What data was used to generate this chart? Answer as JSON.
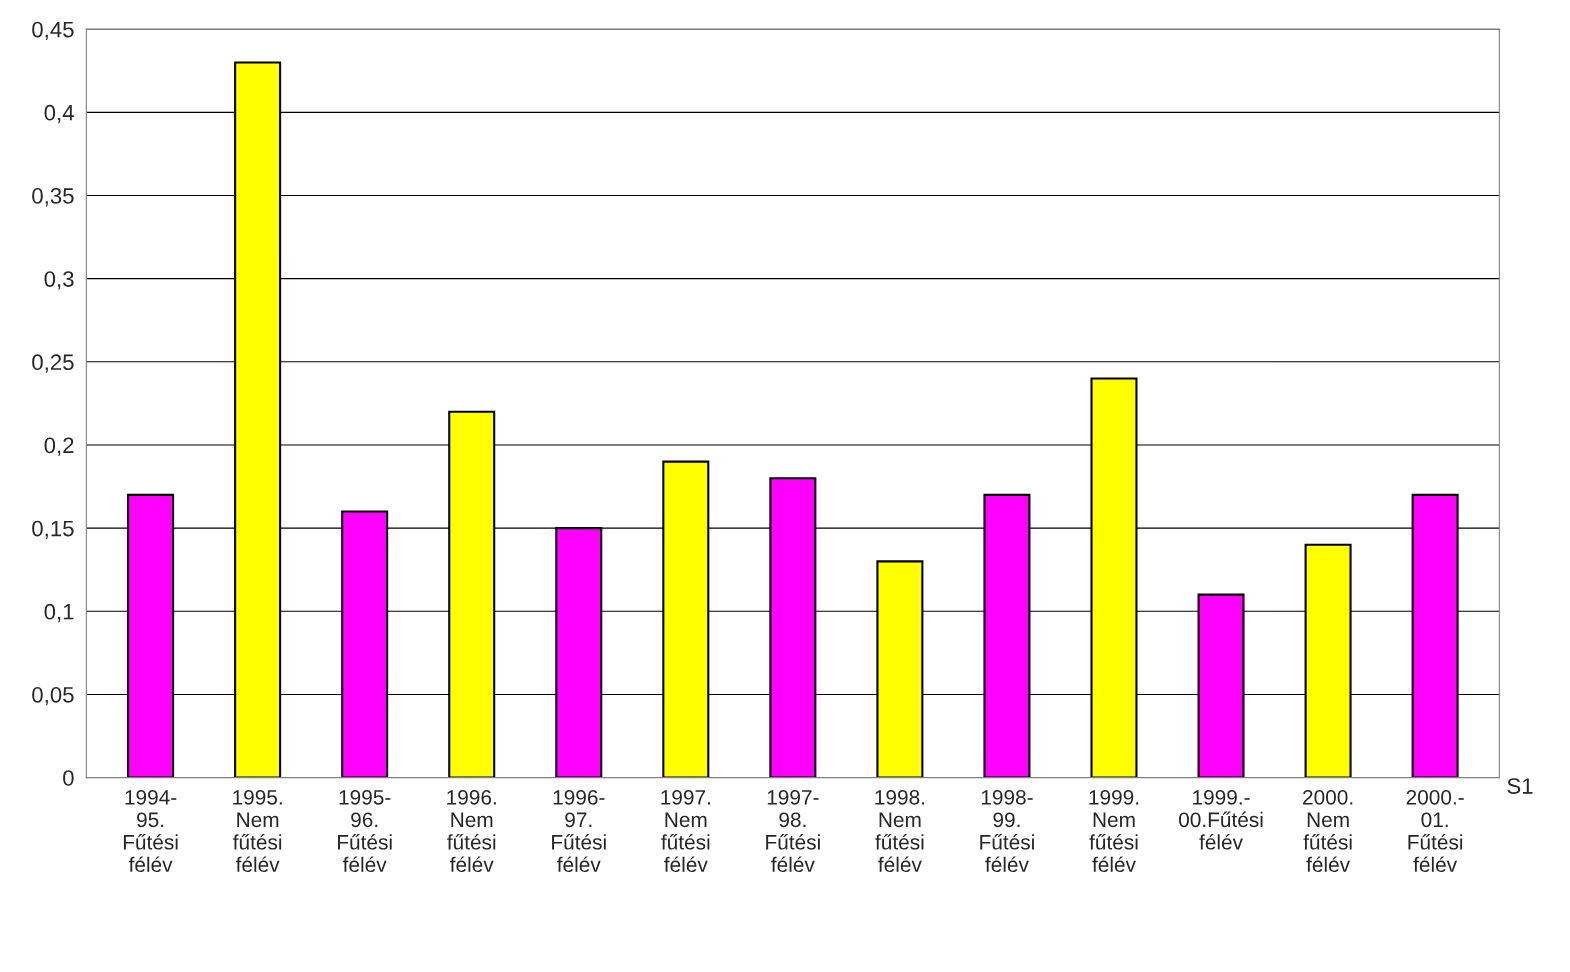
{
  "chart_data": {
    "type": "bar",
    "categories": [
      "1994-95. Fűtési félév",
      "1995. Nem fűtési félév",
      "1995-96. Fűtési félév",
      "1996. Nem fűtési félév",
      "1996-97. Fűtési félév",
      "1997. Nem fűtési félév",
      "1997-98. Fűtési félév",
      "1998. Nem fűtési félév",
      "1998-99. Fűtési félév",
      "1999. Nem fűtési félév",
      "1999.-00.Fűtési félév",
      "2000. Nem fűtési félév",
      "2000.-01. Fűtési félév"
    ],
    "series": [
      {
        "name": "S1",
        "colors": [
          "#ff00ff",
          "#ffff00",
          "#ff00ff",
          "#ffff00",
          "#ff00ff",
          "#ffff00",
          "#ff00ff",
          "#ffff00",
          "#ff00ff",
          "#ffff00",
          "#ff00ff",
          "#ffff00",
          "#ff00ff"
        ],
        "values": [
          0.17,
          0.43,
          0.16,
          0.22,
          0.15,
          0.19,
          0.18,
          0.13,
          0.17,
          0.24,
          0.11,
          0.14,
          0.17
        ]
      }
    ],
    "ylim": [
      0,
      0.45
    ],
    "yticks": [
      0,
      {
        "value": 0.05,
        "label": "0,05"
      },
      {
        "value": 0.1,
        "label": "0,1"
      },
      {
        "value": 0.15,
        "label": "0,15"
      },
      {
        "value": 0.2,
        "label": "0,2"
      },
      {
        "value": 0.25,
        "label": "0,25"
      },
      {
        "value": 0.3,
        "label": "0,3"
      },
      {
        "value": 0.35,
        "label": "0,35"
      },
      {
        "value": 0.4,
        "label": "0,4"
      },
      {
        "value": 0.45,
        "label": "0,45"
      }
    ],
    "grid": "y",
    "legend": false
  }
}
